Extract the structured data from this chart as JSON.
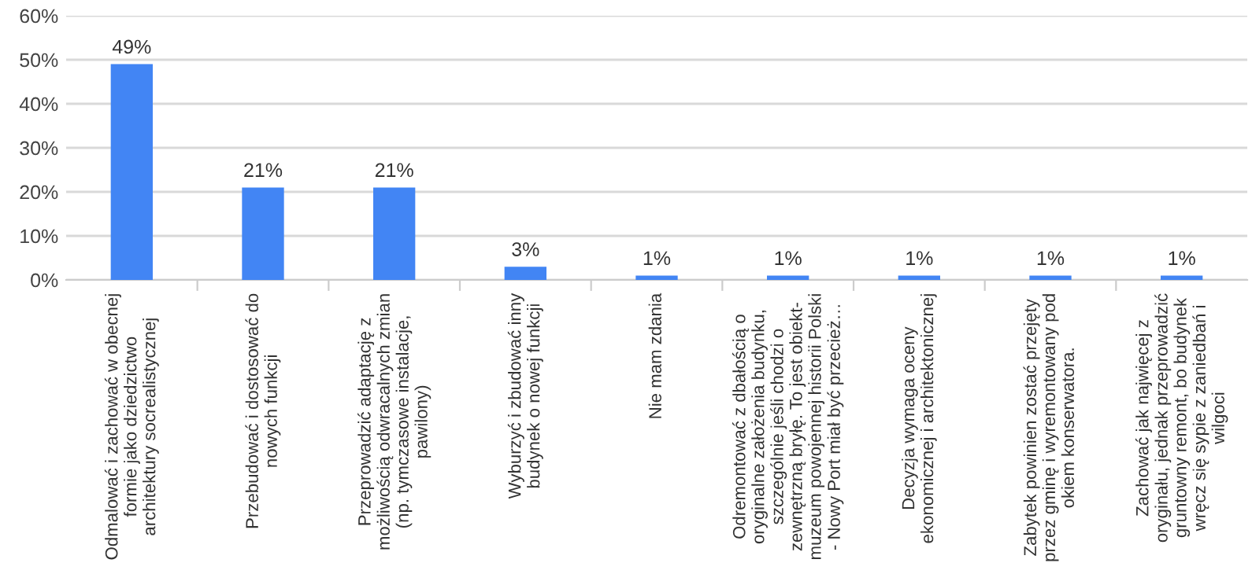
{
  "chart_data": {
    "type": "bar",
    "categories": [
      "Odmalować i zachować w obecnej\nformie jako dziedzictwo\narchitektury socrealistycznej",
      "Przebudować i dostosować do\nnowych funkcji",
      "Przeprowadzić adaptację z\nmożliwością odwracalnych zmian\n(np. tymczasowe instalacje,\npawilony)",
      "Wyburzyć i zbudować inny\nbudynek o nowej funkcji",
      "Nie mam zdania",
      "Odremontować z dbałością o\noryginalne założenia budynku,\nszczególnie jeśli chodzi o\nzewnętrzną bryłę. To jest obiekt-\nmuzeum powojennej historii Polski\n- Nowy Port miał być przecież…",
      "Decyzja wymaga oceny\nekonomicznej i architektonicznej",
      "Zabytek powinien zostać przejęty\nprzez gminę i wyremontowany pod\nokiem konserwatora.",
      "Zachować jak najwięcej z\noryginału, jednak przeprowadzić\ngruntowny remont, bo budynek\nwręcz się sypie z zaniedbań i\nwilgoci"
    ],
    "values": [
      49,
      21,
      21,
      3,
      1,
      1,
      1,
      1,
      1
    ],
    "value_labels": [
      "49%",
      "21%",
      "21%",
      "3%",
      "1%",
      "1%",
      "1%",
      "1%",
      "1%"
    ],
    "color": "#4285f4",
    "ylim": [
      0,
      60
    ],
    "yticks": [
      {
        "value": 0,
        "label": "0%"
      },
      {
        "value": 10,
        "label": "10%"
      },
      {
        "value": 20,
        "label": "20%"
      },
      {
        "value": 30,
        "label": "30%"
      },
      {
        "value": 40,
        "label": "40%"
      },
      {
        "value": 50,
        "label": "50%"
      },
      {
        "value": 60,
        "label": "60%"
      }
    ],
    "grid": "y"
  }
}
